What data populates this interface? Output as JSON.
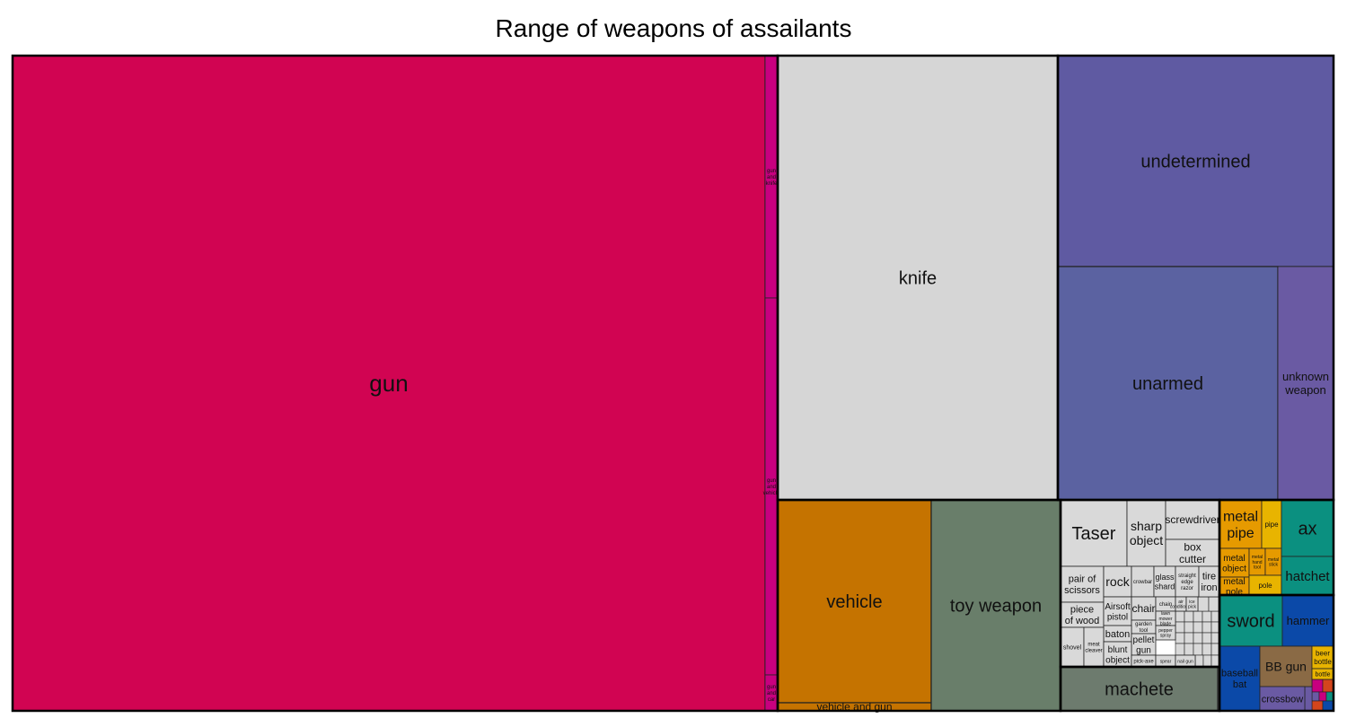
{
  "chart_data": {
    "type": "treemap",
    "title": "Range of weapons of assailants",
    "colors": {
      "gun": "#d10452",
      "gun_group": "#c8007f",
      "knife": "#d6d6d6",
      "misc": "#d9d9d9",
      "undetermined": "#5f5aa2",
      "unarmed": "#5b62a1",
      "unknown": "#6a5aa3",
      "vehicle": "#c57300",
      "toy": "#697e6a",
      "machete": "#6d7b6e",
      "metal": "#e69a00",
      "yellow": "#e8b400",
      "teal": "#0b9080",
      "blue": "#0b49a8",
      "brown": "#8a6a45",
      "purple": "#6a5aa3",
      "red": "#d4451c"
    },
    "cells": [
      {
        "label": "gun",
        "category": "gun",
        "value": 4000
      },
      {
        "label": "gun and knife",
        "category": "gun_group",
        "value": 20
      },
      {
        "label": "gun and vehicle",
        "category": "gun_group",
        "value": 30
      },
      {
        "label": "gun and car",
        "category": "gun_group",
        "value": 10
      },
      {
        "label": "knife",
        "category": "knife",
        "value": 850
      },
      {
        "label": "undetermined",
        "category": "undetermined",
        "value": 410
      },
      {
        "label": "unarmed",
        "category": "unarmed",
        "value": 350
      },
      {
        "label": "unknown weapon",
        "category": "unknown",
        "value": 75
      },
      {
        "label": "vehicle",
        "category": "vehicle",
        "value": 240
      },
      {
        "label": "vehicle and gun",
        "category": "vehicle",
        "value": 15
      },
      {
        "label": "toy weapon",
        "category": "toy",
        "value": 210
      },
      {
        "label": "machete",
        "category": "machete",
        "value": 55
      },
      {
        "label": "Taser",
        "category": "misc",
        "value": 24
      },
      {
        "label": "sharp object",
        "category": "misc",
        "value": 14
      },
      {
        "label": "screwdriver",
        "category": "misc",
        "value": 7
      },
      {
        "label": "box cutter",
        "category": "misc",
        "value": 7
      },
      {
        "label": "pair of scissors",
        "category": "misc",
        "value": 6
      },
      {
        "label": "rock",
        "category": "misc",
        "value": 5
      },
      {
        "label": "crowbar",
        "category": "misc",
        "value": 4
      },
      {
        "label": "glass shard",
        "category": "misc",
        "value": 4
      },
      {
        "label": "straight edge razor",
        "category": "misc",
        "value": 4
      },
      {
        "label": "tire iron",
        "category": "misc",
        "value": 4
      },
      {
        "label": "piece of wood",
        "category": "misc",
        "value": 6
      },
      {
        "label": "Airsoft pistol",
        "category": "misc",
        "value": 3
      },
      {
        "label": "chair",
        "category": "misc",
        "value": 3
      },
      {
        "label": "chain",
        "category": "misc",
        "value": 2
      },
      {
        "label": "air conditioner",
        "category": "misc",
        "value": 2
      },
      {
        "label": "ice pick",
        "category": "misc",
        "value": 2
      },
      {
        "label": "garden tool",
        "category": "misc",
        "value": 2
      },
      {
        "label": "lawn mower blade",
        "category": "misc",
        "value": 2
      },
      {
        "label": "pepper spray",
        "category": "misc",
        "value": 2
      },
      {
        "label": "baton",
        "category": "misc",
        "value": 3
      },
      {
        "label": "pellet gun",
        "category": "misc",
        "value": 3
      },
      {
        "label": "shovel",
        "category": "misc",
        "value": 4
      },
      {
        "label": "meat cleaver",
        "category": "misc",
        "value": 3
      },
      {
        "label": "blunt object",
        "category": "misc",
        "value": 3
      },
      {
        "label": "pick-axe",
        "category": "misc",
        "value": 2
      },
      {
        "label": "spear",
        "category": "misc",
        "value": 2
      },
      {
        "label": "nail gun",
        "category": "misc",
        "value": 2
      },
      {
        "label": "metal pipe",
        "category": "metal",
        "value": 12
      },
      {
        "label": "pipe",
        "category": "yellow",
        "value": 7
      },
      {
        "label": "metal object",
        "category": "metal",
        "value": 6
      },
      {
        "label": "metal hand tool",
        "category": "metal",
        "value": 3
      },
      {
        "label": "metal stick",
        "category": "metal",
        "value": 3
      },
      {
        "label": "metal pole",
        "category": "metal",
        "value": 4
      },
      {
        "label": "pole",
        "category": "yellow",
        "value": 3
      },
      {
        "label": "ax",
        "category": "teal",
        "value": 12
      },
      {
        "label": "hatchet",
        "category": "teal",
        "value": 10
      },
      {
        "label": "sword",
        "category": "teal",
        "value": 18
      },
      {
        "label": "hammer",
        "category": "blue",
        "value": 14
      },
      {
        "label": "baseball bat",
        "category": "blue",
        "value": 16
      },
      {
        "label": "BB gun",
        "category": "brown",
        "value": 12
      },
      {
        "label": "crossbow",
        "category": "purple",
        "value": 5
      },
      {
        "label": "beer bottle",
        "category": "yellow",
        "value": 3
      },
      {
        "label": "bottle",
        "category": "yellow",
        "value": 2
      }
    ]
  }
}
